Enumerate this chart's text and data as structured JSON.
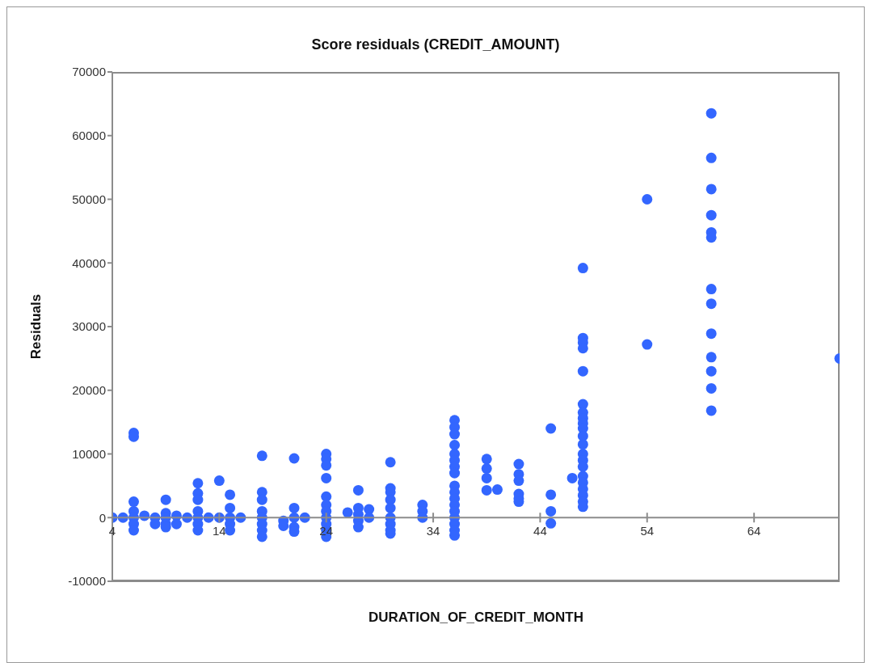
{
  "chart_data": {
    "type": "scatter",
    "title": "Score residuals (CREDIT_AMOUNT)",
    "xlabel": "DURATION_OF_CREDIT_MONTH",
    "ylabel": "Residuals",
    "color": "#3366ff",
    "marker": "circle",
    "x": [
      4,
      5,
      6,
      6,
      6,
      6,
      6,
      6,
      6,
      7,
      8,
      8,
      9,
      9,
      9,
      9,
      9,
      10,
      10,
      11,
      12,
      12,
      12,
      12,
      12,
      12,
      12,
      13,
      14,
      14,
      15,
      15,
      15,
      15,
      15,
      16,
      18,
      18,
      18,
      18,
      18,
      18,
      18,
      18,
      20,
      20,
      21,
      21,
      21,
      21,
      21,
      22,
      24,
      24,
      24,
      24,
      24,
      24,
      24,
      24,
      24,
      24,
      24,
      26,
      27,
      27,
      27,
      27,
      27,
      28,
      28,
      30,
      30,
      30,
      30,
      30,
      30,
      30,
      30,
      30,
      33,
      33,
      33,
      36,
      36,
      36,
      36,
      36,
      36,
      36,
      36,
      36,
      36,
      36,
      36,
      36,
      36,
      36,
      36,
      36,
      39,
      39,
      39,
      39,
      40,
      42,
      42,
      42,
      42,
      42,
      42,
      45,
      45,
      45,
      45,
      47,
      48,
      48,
      48,
      48,
      48,
      48,
      48,
      48,
      48,
      48,
      48,
      48,
      48,
      48,
      48,
      48,
      48,
      48,
      48,
      48,
      48,
      54,
      54,
      60,
      60,
      60,
      60,
      60,
      60,
      60,
      60,
      60,
      60,
      60,
      60,
      60,
      72
    ],
    "values": [
      0,
      0,
      13300,
      12700,
      2500,
      1000,
      0,
      -1000,
      -2000,
      300,
      0,
      -1000,
      2800,
      700,
      0,
      -1000,
      -1500,
      300,
      -1000,
      0,
      5400,
      3800,
      2800,
      1000,
      0,
      -1000,
      -2000,
      0,
      5800,
      0,
      3600,
      1500,
      0,
      -1000,
      -2000,
      0,
      9700,
      4000,
      2800,
      1000,
      0,
      -1000,
      -2000,
      -3000,
      -500,
      -1300,
      9300,
      1500,
      0,
      -1500,
      -2200,
      0,
      10000,
      9200,
      8200,
      6200,
      3300,
      2000,
      1000,
      0,
      -1000,
      -2000,
      -3000,
      800,
      4300,
      1500,
      500,
      -500,
      -1500,
      1300,
      0,
      8700,
      4600,
      4000,
      2800,
      1500,
      0,
      -1000,
      -2000,
      -2500,
      2000,
      1000,
      0,
      15300,
      14200,
      13100,
      11400,
      10000,
      9000,
      8000,
      7000,
      5000,
      4000,
      3000,
      2000,
      1000,
      0,
      -1000,
      -2000,
      -2800,
      9200,
      7700,
      6200,
      4300,
      4400,
      8400,
      6800,
      5800,
      3700,
      3000,
      2500,
      14000,
      3600,
      1000,
      -900,
      6200,
      39200,
      28200,
      27500,
      26600,
      23000,
      17800,
      16500,
      15600,
      14800,
      14000,
      12800,
      11500,
      10000,
      9000,
      8000,
      6500,
      5500,
      4500,
      3500,
      2500,
      1700,
      50000,
      27200,
      63500,
      56500,
      51600,
      47500,
      44800,
      44000,
      35900,
      33600,
      28900,
      25200,
      23000,
      20300,
      16800,
      25000
    ],
    "xlim": [
      4,
      72
    ],
    "xticks": [
      4,
      14,
      24,
      34,
      44,
      54,
      64
    ],
    "ylim": [
      -10000,
      70000
    ],
    "yticks": [
      -10000,
      0,
      10000,
      20000,
      30000,
      40000,
      50000,
      60000,
      70000
    ]
  }
}
